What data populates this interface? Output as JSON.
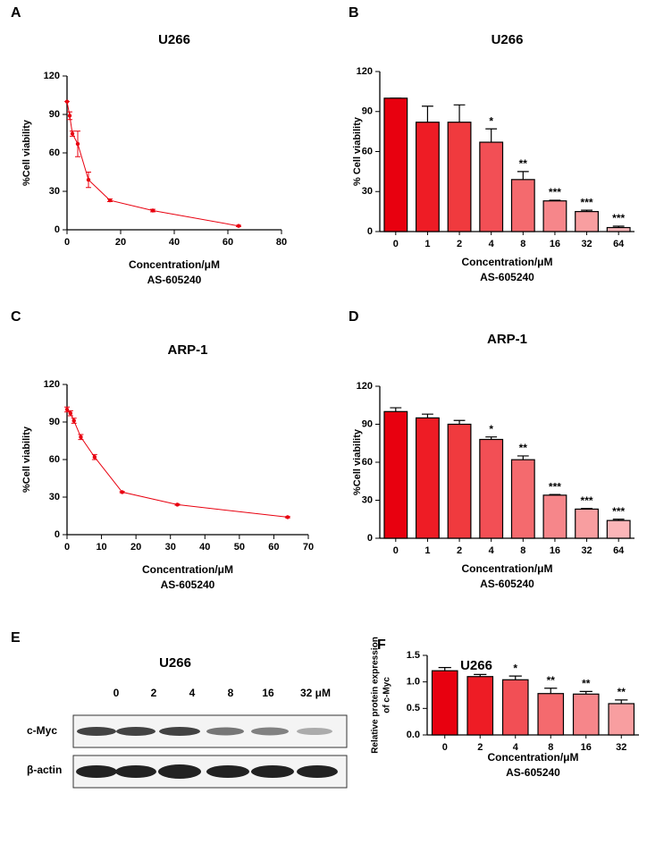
{
  "chart_data": [
    {
      "type": "line",
      "panel": "A",
      "title": "U266",
      "ylabel": "%Cell viability",
      "xlabel": "Concentration/μM",
      "xsubtitle": "AS-605240",
      "color": "#e8000f",
      "x": [
        0,
        1,
        2,
        4,
        8,
        16,
        32,
        64
      ],
      "values": [
        100,
        89,
        75,
        67,
        39,
        23,
        15,
        3
      ],
      "errors": [
        0,
        3,
        2,
        10,
        6,
        1,
        1,
        0.5
      ],
      "xlim": [
        0,
        80
      ],
      "xticks": [
        0,
        20,
        40,
        60,
        80
      ],
      "ylim": [
        0,
        120
      ],
      "yticks": [
        0,
        30,
        60,
        90,
        120
      ]
    },
    {
      "type": "bar",
      "panel": "B",
      "title": "U266",
      "ylabel": "% Cell viability",
      "xlabel": "Concentration/μM",
      "xsubtitle": "AS-605240",
      "categories": [
        "0",
        "1",
        "2",
        "4",
        "8",
        "16",
        "32",
        "64"
      ],
      "values": [
        100,
        82,
        82,
        67,
        39,
        23,
        15,
        3
      ],
      "errors": [
        0,
        12,
        13,
        10,
        6,
        0.5,
        1,
        1
      ],
      "significance": [
        null,
        null,
        null,
        "*",
        "**",
        "***",
        "***",
        "***"
      ],
      "colors": [
        "#e8000f",
        "#ee1c25",
        "#f03a3e",
        "#f24f55",
        "#f46a6e",
        "#f6868a",
        "#f89ea0",
        "#fbb5b8"
      ],
      "ylim": [
        0,
        120
      ],
      "yticks": [
        0,
        30,
        60,
        90,
        120
      ]
    },
    {
      "type": "line",
      "panel": "C",
      "title": "ARP-1",
      "ylabel": "%Cell viability",
      "xlabel": "Concentration/μM",
      "xsubtitle": "AS-605240",
      "color": "#e8000f",
      "x": [
        0,
        1,
        2,
        4,
        8,
        16,
        32,
        64
      ],
      "values": [
        100,
        97,
        91,
        78,
        62,
        34,
        24,
        14
      ],
      "errors": [
        2,
        2,
        2,
        2,
        2,
        0.5,
        0.5,
        0.5
      ],
      "xlim": [
        0,
        70
      ],
      "xticks": [
        0,
        10,
        20,
        30,
        40,
        50,
        60,
        70
      ],
      "ylim": [
        0,
        120
      ],
      "yticks": [
        0,
        30,
        60,
        90,
        120
      ]
    },
    {
      "type": "bar",
      "panel": "D",
      "title": "ARP-1",
      "ylabel": "%Cell viability",
      "xlabel": "Concentration/μM",
      "xsubtitle": "AS-605240",
      "categories": [
        "0",
        "1",
        "2",
        "4",
        "8",
        "16",
        "32",
        "64"
      ],
      "values": [
        100,
        95,
        90,
        78,
        62,
        34,
        23,
        14
      ],
      "errors": [
        3,
        3,
        3,
        2,
        3,
        0.5,
        0.5,
        1
      ],
      "significance": [
        null,
        null,
        null,
        "*",
        "**",
        "***",
        "***",
        "***"
      ],
      "colors": [
        "#e8000f",
        "#ee1c25",
        "#f03a3e",
        "#f24f55",
        "#f46a6e",
        "#f6868a",
        "#f89ea0",
        "#fbb5b8"
      ],
      "ylim": [
        0,
        120
      ],
      "yticks": [
        0,
        30,
        60,
        90,
        120
      ]
    },
    {
      "type": "bar",
      "panel": "F",
      "title": "U266",
      "ylabel": [
        "Relative protein expression",
        "of c-Myc"
      ],
      "xlabel": "Concentration/μM",
      "xsubtitle": "AS-605240",
      "categories": [
        "0",
        "2",
        "4",
        "8",
        "16",
        "32"
      ],
      "values": [
        1.21,
        1.1,
        1.04,
        0.78,
        0.77,
        0.59
      ],
      "errors": [
        0.06,
        0.04,
        0.07,
        0.1,
        0.05,
        0.07
      ],
      "significance": [
        null,
        null,
        "*",
        "**",
        "**",
        "**"
      ],
      "colors": [
        "#e8000f",
        "#ee1c25",
        "#f24f55",
        "#f46a6e",
        "#f6868a",
        "#f89ea0"
      ],
      "ylim": [
        0,
        1.5
      ],
      "yticks": [
        {
          "value": 0,
          "label": "0.0"
        },
        {
          "value": 0.5,
          "label": "0.5"
        },
        {
          "value": 1,
          "label": "1.0"
        },
        {
          "value": 1.5,
          "label": "1.5"
        }
      ]
    }
  ],
  "blot": {
    "panel": "E",
    "title": "U266",
    "lanes": [
      "0",
      "2",
      "4",
      "8",
      "16",
      "32 μM"
    ],
    "rows": [
      "c-Myc",
      "β-actin"
    ]
  }
}
